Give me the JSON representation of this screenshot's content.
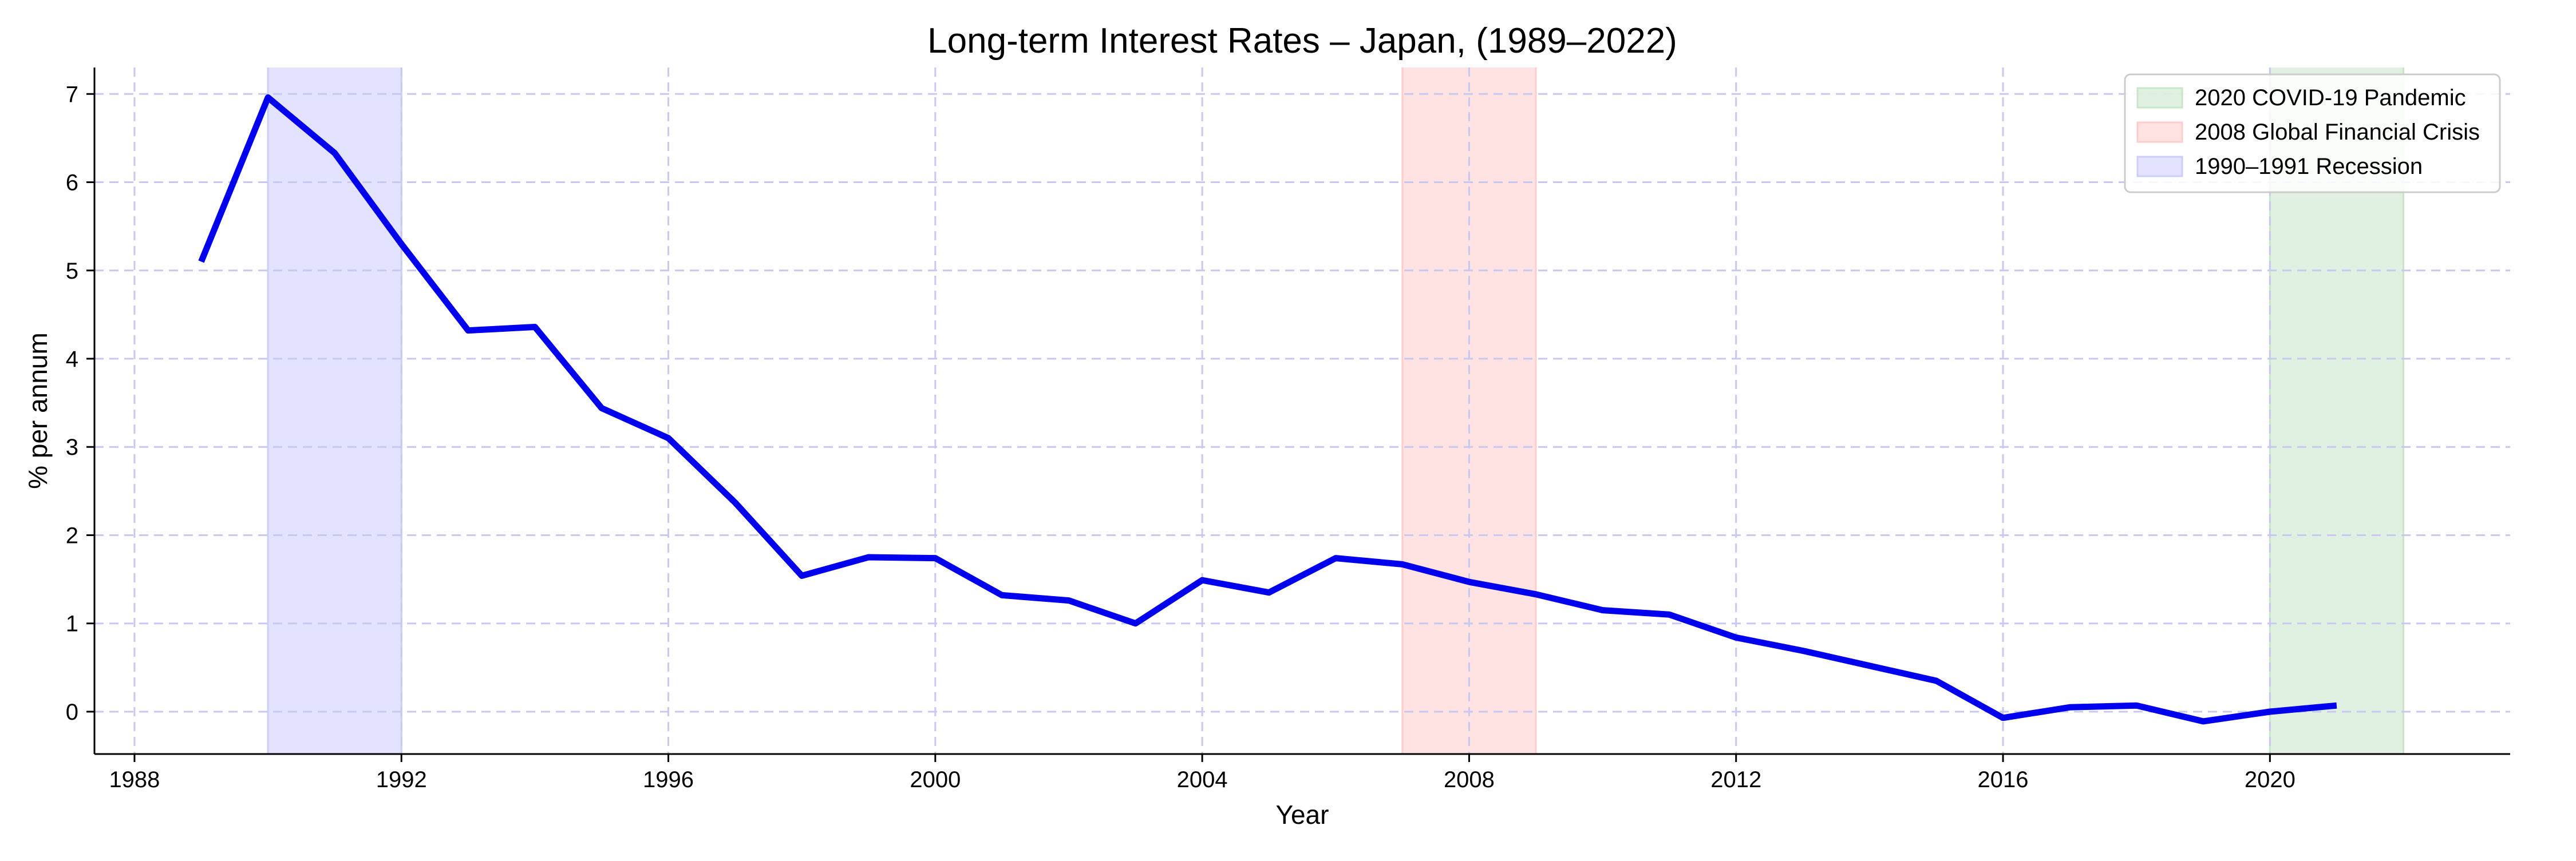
{
  "chart_data": {
    "type": "line",
    "title": "Long-term Interest Rates – Japan, (1989–2022)",
    "xlabel": "Year",
    "ylabel": "% per annum",
    "xlim": [
      1987.4,
      2023.6
    ],
    "ylim": [
      -0.48,
      7.3
    ],
    "x_ticks": [
      1988,
      1992,
      1996,
      2000,
      2004,
      2008,
      2012,
      2016,
      2020
    ],
    "y_ticks": [
      0,
      1,
      2,
      3,
      4,
      5,
      6,
      7
    ],
    "grid": true,
    "legend_position": "top-right",
    "series": [
      {
        "color": "#0000ee",
        "x": [
          1989,
          1990,
          1991,
          1992,
          1993,
          1994,
          1995,
          1996,
          1997,
          1998,
          1999,
          2000,
          2001,
          2002,
          2003,
          2004,
          2005,
          2006,
          2007,
          2008,
          2009,
          2010,
          2011,
          2012,
          2013,
          2014,
          2015,
          2016,
          2017,
          2018,
          2019,
          2020,
          2021
        ],
        "y": [
          5.1,
          6.96,
          6.33,
          5.3,
          4.32,
          4.36,
          3.44,
          3.1,
          2.37,
          1.54,
          1.75,
          1.74,
          1.32,
          1.26,
          1.0,
          1.49,
          1.35,
          1.74,
          1.67,
          1.47,
          1.33,
          1.15,
          1.1,
          0.84,
          0.69,
          0.52,
          0.35,
          -0.07,
          0.05,
          0.07,
          -0.11,
          0.0,
          0.07
        ]
      }
    ],
    "shaded_regions": [
      {
        "label": "2020 COVID-19 Pandemic",
        "x_start": 2020,
        "x_end": 2022,
        "color": "#c8e6c8"
      },
      {
        "label": "2008 Global Financial Crisis",
        "x_start": 2007,
        "x_end": 2009,
        "color": "#ffcccc"
      },
      {
        "label": "1990–1991 Recession",
        "x_start": 1990,
        "x_end": 1992,
        "color": "#ccccff"
      }
    ]
  }
}
